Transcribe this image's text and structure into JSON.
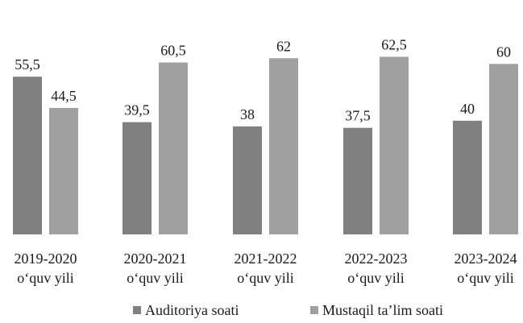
{
  "chart_data": {
    "type": "bar",
    "title": "",
    "xlabel": "",
    "ylabel": "",
    "ylim": [
      0,
      70
    ],
    "grid": false,
    "legend_position": "bottom",
    "categories": [
      [
        "2019-2020",
        "o‘quv yili"
      ],
      [
        "2020-2021",
        "o‘quv yili"
      ],
      [
        "2021-2022",
        "o‘quv yili"
      ],
      [
        "2022-2023",
        "o‘quv yili"
      ],
      [
        "2023-2024",
        "o‘quv yili"
      ]
    ],
    "series": [
      {
        "name": "Auditoriya soati",
        "color": "#808080",
        "values": [
          55.5,
          39.5,
          38,
          37.5,
          40
        ],
        "labels": [
          "55,5",
          "39,5",
          "38",
          "37,5",
          "40"
        ]
      },
      {
        "name": "Mustaqil ta’lim soati",
        "color": "#a0a0a0",
        "values": [
          44.5,
          60.5,
          62,
          62.5,
          60
        ],
        "labels": [
          "44,5",
          "60,5",
          "62",
          "62,5",
          "60"
        ]
      }
    ]
  }
}
